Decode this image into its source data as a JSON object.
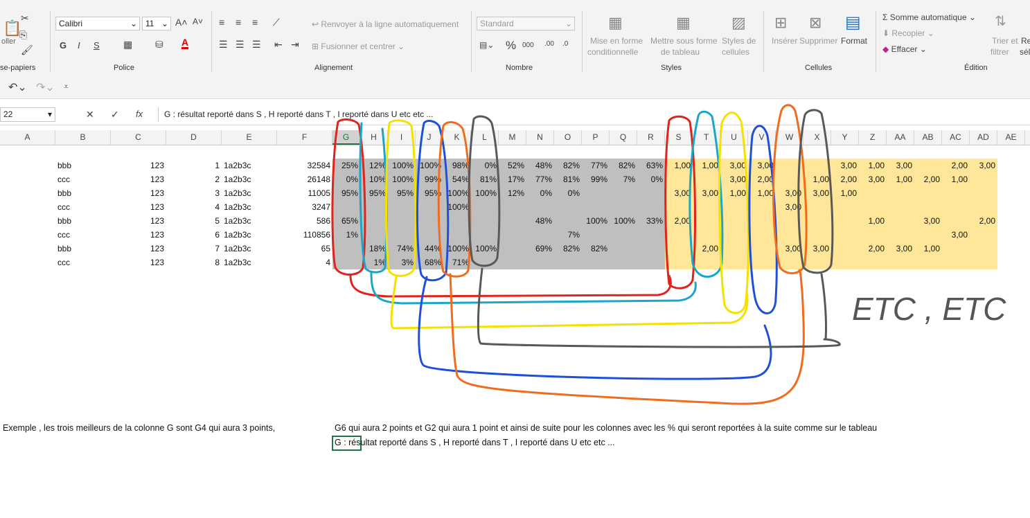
{
  "ribbon": {
    "clipboard_paste": "oller",
    "clipboard_label": "se-papiers",
    "font_name": "Calibri",
    "font_size": "11",
    "bold": "G",
    "italic": "I",
    "underline": "S",
    "font_label": "Police",
    "wrap_text": "Renvoyer à la ligne automatiquement",
    "merge_center": "Fusionner et centrer",
    "alignment_label": "Alignement",
    "number_format": "Standard",
    "number_label": "Nombre",
    "cond_format_1": "Mise en forme",
    "cond_format_2": "conditionnelle",
    "table_format_1": "Mettre sous forme",
    "table_format_2": "de tableau",
    "cell_styles_1": "Styles de",
    "cell_styles_2": "cellules",
    "styles_label": "Styles",
    "insert": "Insérer",
    "delete": "Supprimer",
    "format": "Format",
    "cells_label": "Cellules",
    "autosum": "Somme automatique",
    "fill": "Recopier",
    "clear": "Effacer",
    "sort_1": "Trier et",
    "sort_2": "filtrer",
    "find_1": "Re",
    "find_2": "sél",
    "editing_label": "Édition"
  },
  "formula_bar": {
    "name_box": "22",
    "fx": "fx",
    "content": "G : résultat reporté dans S , H reporté dans T , I reporté dans U etc etc ..."
  },
  "columns": [
    "A",
    "B",
    "C",
    "D",
    "E",
    "F",
    "G",
    "H",
    "I",
    "J",
    "K",
    "L",
    "M",
    "N",
    "O",
    "P",
    "Q",
    "R",
    "S",
    "T",
    "U",
    "V",
    "W",
    "X",
    "Y",
    "Z",
    "AA",
    "AB",
    "AC",
    "AD",
    "AE"
  ],
  "rows": [
    {
      "b": "bbb",
      "c": "123",
      "d": "1",
      "e": "1a2b3c",
      "f": "32584",
      "pct": [
        "25%",
        "12%",
        "100%",
        "100%",
        "98%",
        "0%",
        "52%",
        "48%",
        "82%",
        "77%",
        "82%",
        "63%"
      ],
      "pts": [
        "1,00",
        "1,00",
        "3,00",
        "3,00",
        "",
        "",
        "3,00",
        "1,00",
        "3,00",
        "",
        "2,00",
        "3,00"
      ]
    },
    {
      "b": "ccc",
      "c": "123",
      "d": "2",
      "e": "1a2b3c",
      "f": "26148",
      "pct": [
        "0%",
        "10%",
        "100%",
        "99%",
        "54%",
        "81%",
        "17%",
        "77%",
        "81%",
        "99%",
        "7%",
        "0%"
      ],
      "pts": [
        "",
        "",
        "3,00",
        "2,00",
        "",
        "1,00",
        "2,00",
        "3,00",
        "1,00",
        "2,00",
        "1,00",
        ""
      ]
    },
    {
      "b": "bbb",
      "c": "123",
      "d": "3",
      "e": "1a2b3c",
      "f": "11005",
      "pct": [
        "95%",
        "95%",
        "95%",
        "95%",
        "100%",
        "100%",
        "12%",
        "0%",
        "0%",
        "",
        "",
        ""
      ],
      "pts": [
        "3,00",
        "3,00",
        "1,00",
        "1,00",
        "3,00",
        "3,00",
        "1,00",
        "",
        "",
        "",
        "",
        ""
      ]
    },
    {
      "b": "ccc",
      "c": "123",
      "d": "4",
      "e": "1a2b3c",
      "f": "3247",
      "pct": [
        "",
        "",
        "",
        "",
        "100%",
        "",
        "",
        "",
        "",
        "",
        "",
        ""
      ],
      "pts": [
        "",
        "",
        "",
        "",
        "3,00",
        "",
        "",
        "",
        "",
        "",
        "",
        ""
      ]
    },
    {
      "b": "bbb",
      "c": "123",
      "d": "5",
      "e": "1a2b3c",
      "f": "586",
      "pct": [
        "65%",
        "",
        "",
        "",
        "",
        "",
        "",
        "48%",
        "",
        "100%",
        "100%",
        "33%"
      ],
      "pts": [
        "2,00",
        "",
        "",
        "",
        "",
        "",
        "",
        "1,00",
        "",
        "3,00",
        "",
        "2,00"
      ]
    },
    {
      "b": "ccc",
      "c": "123",
      "d": "6",
      "e": "1a2b3c",
      "f": "110856",
      "pct": [
        "1%",
        "",
        "",
        "",
        "",
        "",
        "",
        "",
        "7%",
        "",
        "",
        ""
      ],
      "pts": [
        "",
        "",
        "",
        "",
        "",
        "",
        "",
        "",
        "",
        "",
        "3,00",
        ""
      ]
    },
    {
      "b": "bbb",
      "c": "123",
      "d": "7",
      "e": "1a2b3c",
      "f": "65",
      "pct": [
        "",
        "18%",
        "74%",
        "44%",
        "100%",
        "100%",
        "",
        "69%",
        "82%",
        "82%",
        "",
        ""
      ],
      "pts": [
        "",
        "2,00",
        "",
        "",
        "3,00",
        "3,00",
        "",
        "2,00",
        "3,00",
        "1,00",
        "",
        ""
      ]
    },
    {
      "b": "ccc",
      "c": "123",
      "d": "8",
      "e": "1a2b3c",
      "f": "4",
      "pct": [
        "",
        "1%",
        "3%",
        "68%",
        "71%",
        "",
        "",
        "",
        "",
        "",
        "",
        ""
      ],
      "pts": [
        "",
        "",
        "",
        "",
        "",
        "",
        "",
        "",
        "",
        "",
        "",
        ""
      ]
    }
  ],
  "notes": {
    "line1a": "Exemple , les trois meilleurs de la colonne G sont G4 qui aura 3 points,",
    "line1b": "G6 qui aura 2 points et G2 qui aura 1 point et ainsi de suite pour les colonnes avec les % qui seront reportées à la suite comme sur le tableau",
    "line2": "G : résultat reporté dans S , H reporté dans T , I reporté dans U etc etc ..."
  },
  "annotation_text": "ETC , ETC",
  "colors": {
    "gray_fill": "#bfbfbf",
    "yellow_fill": "#ffe699",
    "red": "#e0241b",
    "cyan": "#1aa6c8",
    "yellow": "#f5e100",
    "blue": "#1d4fd8",
    "orange": "#f26b1d",
    "dark_gray": "#595959"
  }
}
